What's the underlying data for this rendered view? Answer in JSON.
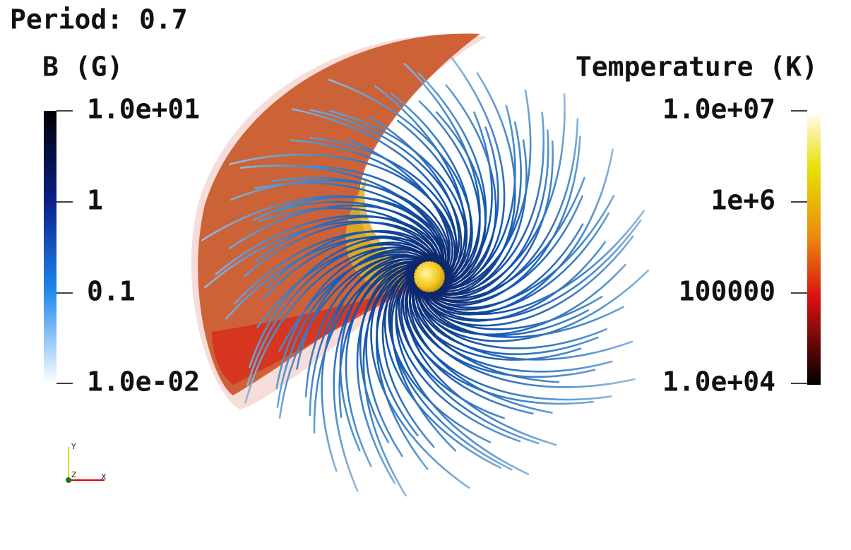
{
  "header": {
    "title": "Period: 0.7"
  },
  "left_colorbar": {
    "title": "B (G)",
    "labels": [
      "1.0e+01",
      "1",
      "0.1",
      "1.0e-02"
    ]
  },
  "right_colorbar": {
    "title": "Temperature (K)",
    "labels": [
      "1.0e+07",
      "1e+6",
      "100000",
      "1.0e+04"
    ]
  },
  "axes_triad": {
    "labels": [
      "Y",
      "Z",
      "X"
    ]
  }
}
